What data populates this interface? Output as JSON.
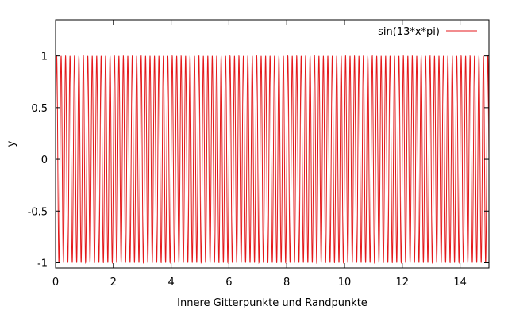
{
  "chart_data": {
    "type": "line",
    "title": "",
    "xlabel": "Innere Gitterpunkte und Randpunkte",
    "ylabel": "y",
    "xlim": [
      0,
      15
    ],
    "ylim": [
      -1.05,
      1.35
    ],
    "x_ticks": [
      0,
      2,
      4,
      6,
      8,
      10,
      12,
      14
    ],
    "x_tick_labels": [
      "0",
      "2",
      "4",
      "6",
      "8",
      "10",
      "12",
      "14"
    ],
    "y_ticks": [
      -1,
      -0.5,
      0,
      0.5,
      1
    ],
    "y_tick_labels": [
      "-1",
      "-0.5",
      "0",
      "0.5",
      "1"
    ],
    "grid": false,
    "legend_position": "top-right",
    "series": [
      {
        "name": "sin(13*x*pi)",
        "color": "#e41a1c",
        "function": "sin(13*x*pi)",
        "x_range": [
          0,
          15
        ]
      }
    ]
  }
}
